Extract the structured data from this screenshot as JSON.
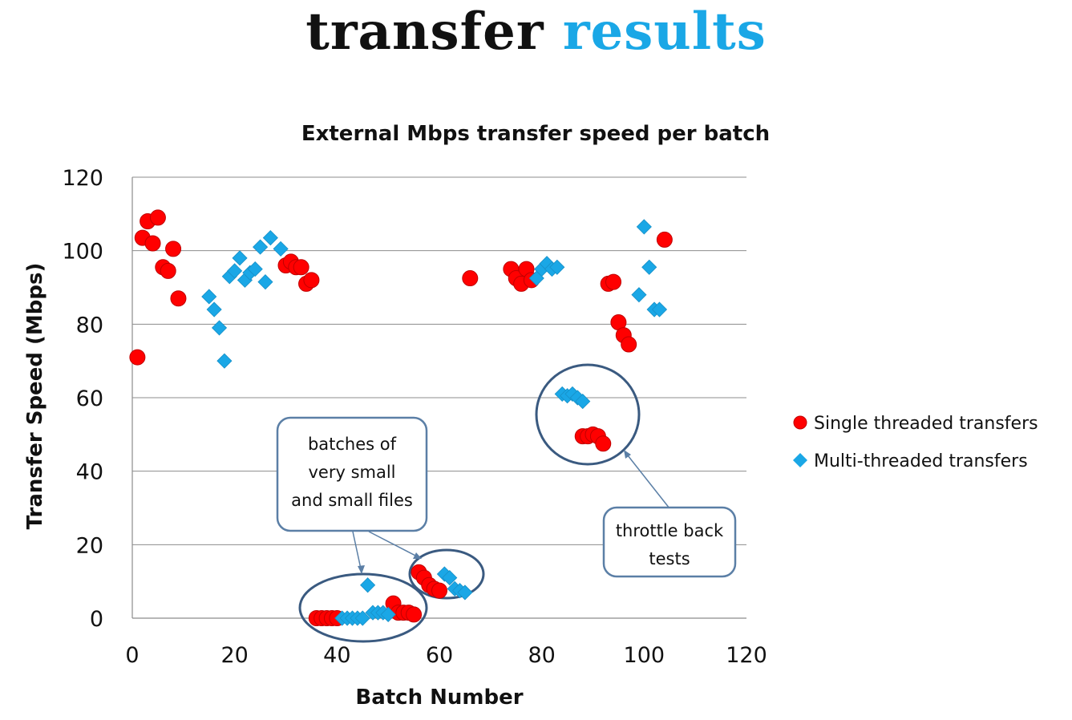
{
  "slide": {
    "title_word1": "transfer",
    "title_word2": "results"
  },
  "colors": {
    "single": "#FF0000",
    "multi": "#1AA7E6",
    "callout_border": "#3A5A80",
    "grid": "#8C8C8C"
  },
  "chart_data": {
    "type": "scatter",
    "title": "External Mbps transfer speed  per batch",
    "xlabel": "Batch Number",
    "ylabel": "Transfer Speed (Mbps)",
    "xlim": [
      0,
      120
    ],
    "ylim": [
      0,
      120
    ],
    "x_ticks": [
      0,
      20,
      40,
      60,
      80,
      100,
      120
    ],
    "y_ticks": [
      0,
      20,
      40,
      60,
      80,
      100,
      120
    ],
    "grid": "horizontal",
    "legend_position": "right",
    "series": [
      {
        "name": "Single threaded transfers",
        "marker": "circle",
        "color": "#FF0000",
        "points": [
          [
            1,
            71
          ],
          [
            2,
            103.5
          ],
          [
            3,
            108
          ],
          [
            4,
            102
          ],
          [
            5,
            109
          ],
          [
            6,
            95.5
          ],
          [
            7,
            94.5
          ],
          [
            8,
            100.5
          ],
          [
            9,
            87
          ],
          [
            30,
            96
          ],
          [
            31,
            97
          ],
          [
            32,
            95.5
          ],
          [
            33,
            95.5
          ],
          [
            34,
            91
          ],
          [
            35,
            92
          ],
          [
            36,
            0
          ],
          [
            37,
            0
          ],
          [
            38,
            0
          ],
          [
            39,
            0
          ],
          [
            40,
            0
          ],
          [
            51,
            4
          ],
          [
            52,
            1.5
          ],
          [
            53,
            1.5
          ],
          [
            54,
            1.5
          ],
          [
            55,
            1
          ],
          [
            56,
            12.5
          ],
          [
            57,
            11
          ],
          [
            58,
            9
          ],
          [
            59,
            8
          ],
          [
            60,
            7.5
          ],
          [
            66,
            92.5
          ],
          [
            74,
            95
          ],
          [
            75,
            92.5
          ],
          [
            76,
            91
          ],
          [
            77,
            95
          ],
          [
            78,
            92
          ],
          [
            88,
            49.5
          ],
          [
            89,
            49.5
          ],
          [
            90,
            50
          ],
          [
            91,
            49.5
          ],
          [
            92,
            47.5
          ],
          [
            93,
            91
          ],
          [
            94,
            91.5
          ],
          [
            95,
            80.5
          ],
          [
            96,
            77
          ],
          [
            97,
            74.5
          ],
          [
            104,
            103
          ]
        ]
      },
      {
        "name": "Multi-threaded transfers",
        "marker": "diamond",
        "color": "#1AA7E6",
        "points": [
          [
            15,
            87.5
          ],
          [
            16,
            84
          ],
          [
            17,
            79
          ],
          [
            18,
            70
          ],
          [
            19,
            93
          ],
          [
            20,
            94.5
          ],
          [
            21,
            98
          ],
          [
            22,
            92
          ],
          [
            23,
            94
          ],
          [
            24,
            95
          ],
          [
            25,
            101
          ],
          [
            26,
            91.5
          ],
          [
            27,
            103.5
          ],
          [
            29,
            100.5
          ],
          [
            41,
            0
          ],
          [
            42,
            0
          ],
          [
            43,
            0
          ],
          [
            44,
            0
          ],
          [
            45,
            0
          ],
          [
            46,
            9
          ],
          [
            47,
            1.5
          ],
          [
            48,
            1.5
          ],
          [
            49,
            1.5
          ],
          [
            50,
            1
          ],
          [
            61,
            12
          ],
          [
            62,
            11
          ],
          [
            63,
            8
          ],
          [
            64,
            7.5
          ],
          [
            65,
            7
          ],
          [
            79,
            92.5
          ],
          [
            80,
            95
          ],
          [
            81,
            96.5
          ],
          [
            82,
            95
          ],
          [
            83,
            95.5
          ],
          [
            84,
            61
          ],
          [
            85,
            60.5
          ],
          [
            86,
            61
          ],
          [
            87,
            60
          ],
          [
            88,
            59
          ],
          [
            99,
            88
          ],
          [
            100,
            106.5
          ],
          [
            101,
            95.5
          ],
          [
            102,
            84
          ],
          [
            103,
            84
          ]
        ]
      }
    ],
    "annotations": [
      {
        "text_lines": [
          "batches of",
          "very small",
          "and small files"
        ]
      },
      {
        "text_lines": [
          "throttle back",
          "tests"
        ]
      }
    ]
  }
}
